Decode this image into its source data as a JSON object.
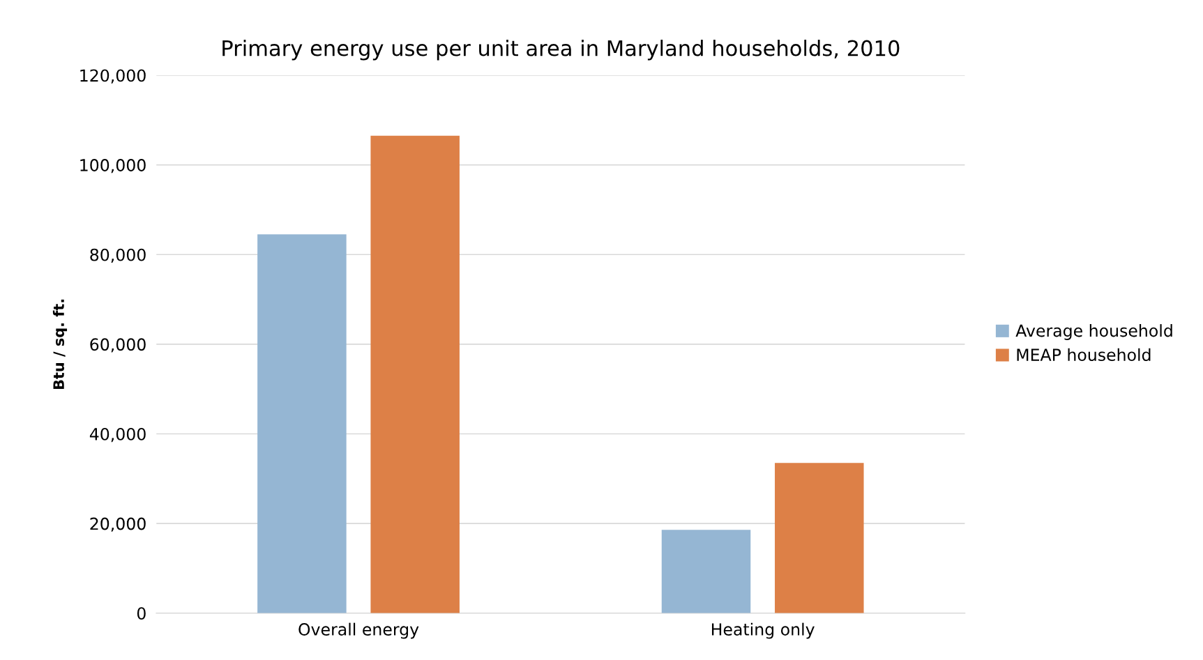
{
  "chart_data": {
    "type": "bar",
    "title": "Primary energy use per unit area in Maryland households, 2010",
    "ylabel": "Btu / sq. ft.",
    "categories": [
      "Overall energy",
      "Heating only"
    ],
    "series": [
      {
        "name": "Average household",
        "color": "#95b6d3",
        "values": [
          84500,
          18600
        ]
      },
      {
        "name": "MEAP household",
        "color": "#dd8047",
        "values": [
          106500,
          33500
        ]
      }
    ],
    "ylim": [
      0,
      120000
    ],
    "yticks": [
      {
        "value": 0,
        "label": "0"
      },
      {
        "value": 20000,
        "label": "20,000"
      },
      {
        "value": 40000,
        "label": "40,000"
      },
      {
        "value": 60000,
        "label": "60,000"
      },
      {
        "value": 80000,
        "label": "80,000"
      },
      {
        "value": 100000,
        "label": "100,000"
      },
      {
        "value": 120000,
        "label": "120,000"
      }
    ],
    "grid": "y",
    "legend": "right"
  }
}
